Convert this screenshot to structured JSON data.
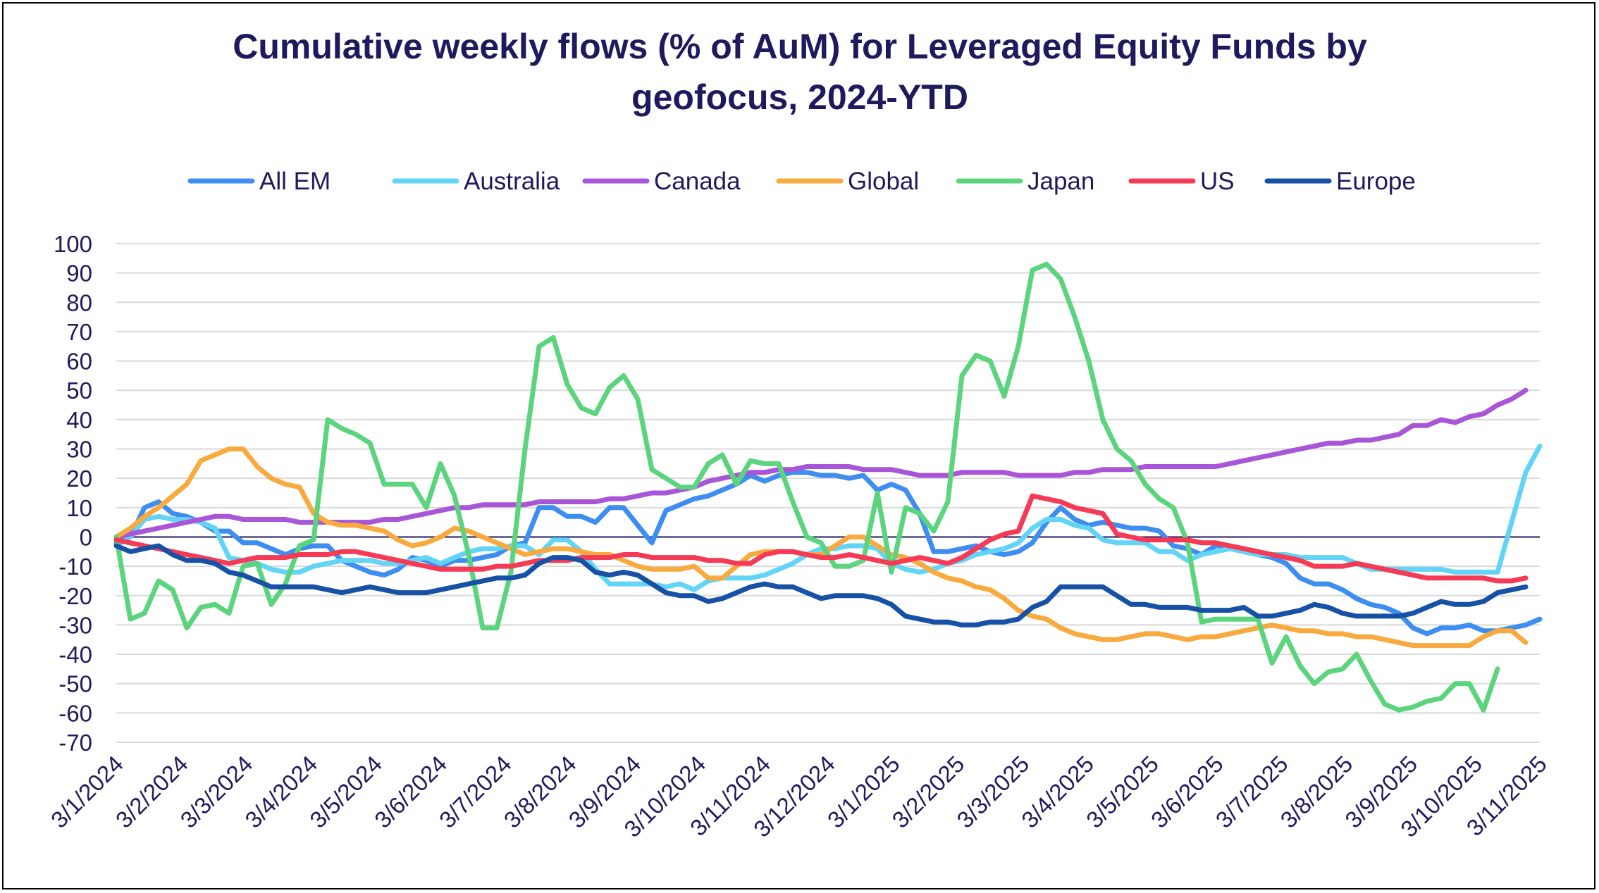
{
  "chart_data": {
    "type": "line",
    "title_lines": [
      "Cumulative weekly flows (% of AuM) for Leveraged Equity Funds by",
      "geofocus, 2024-YTD"
    ],
    "ylim": [
      -70,
      100
    ],
    "yticks": [
      "100",
      "90",
      "80",
      "70",
      "60",
      "50",
      "40",
      "30",
      "20",
      "10",
      "0",
      "-10",
      "-20",
      "-30",
      "-40",
      "-50",
      "-60",
      "-70"
    ],
    "x_tick_labels": [
      "3/1/2024",
      "3/2/2024",
      "3/3/2024",
      "3/4/2024",
      "3/5/2024",
      "3/6/2024",
      "3/7/2024",
      "3/8/2024",
      "3/9/2024",
      "3/10/2024",
      "3/11/2024",
      "3/12/2024",
      "3/1/2025",
      "3/2/2025",
      "3/3/2025",
      "3/4/2025",
      "3/5/2025",
      "3/6/2025",
      "3/7/2025",
      "3/8/2025",
      "3/9/2025",
      "3/10/2025",
      "3/11/2025"
    ],
    "legend_position": "top",
    "grid": true,
    "series": [
      {
        "name": "All EM",
        "color": "#3d8ef0",
        "values": [
          -2,
          0,
          10,
          12,
          8,
          7,
          5,
          2,
          2,
          -2,
          -2,
          -4,
          -6,
          -4,
          -3,
          -3,
          -8,
          -10,
          -12,
          -13,
          -11,
          -7,
          -8,
          -10,
          -8,
          -8,
          -7,
          -6,
          -3,
          -2,
          10,
          10,
          7,
          7,
          5,
          10,
          10,
          4,
          -2,
          9,
          11,
          13,
          14,
          16,
          18,
          21,
          19,
          21,
          22,
          22,
          21,
          21,
          20,
          21,
          16,
          18,
          16,
          8,
          -5,
          -5,
          -4,
          -3,
          -5,
          -6,
          -5,
          -2,
          5,
          10,
          6,
          4,
          5,
          4,
          3,
          3,
          2,
          -3,
          -4,
          -6,
          -3,
          -3,
          -5,
          -6,
          -7,
          -9,
          -14,
          -16,
          -16,
          -18,
          -21,
          -23,
          -24,
          -26,
          -31,
          -33,
          -31,
          -31,
          -30,
          -32,
          -32,
          -31,
          -30,
          -28
        ]
      },
      {
        "name": "Australia",
        "color": "#62d4f5",
        "values": [
          -3,
          0,
          6,
          7,
          6,
          6,
          5,
          3,
          -7,
          -8,
          -9,
          -11,
          -12,
          -12,
          -10,
          -9,
          -8,
          -8,
          -8,
          -9,
          -9,
          -8,
          -7,
          -9,
          -7,
          -5,
          -4,
          -4,
          -3,
          -3,
          -6,
          -1,
          -1,
          -5,
          -11,
          -16,
          -16,
          -16,
          -16,
          -17,
          -16,
          -18,
          -15,
          -14,
          -14,
          -14,
          -13,
          -11,
          -9,
          -6,
          -4,
          -4,
          -3,
          -3,
          -4,
          -9,
          -11,
          -12,
          -11,
          -9,
          -8,
          -6,
          -5,
          -4,
          -2,
          3,
          6,
          6,
          4,
          3,
          -1,
          -2,
          -2,
          -2,
          -5,
          -5,
          -8,
          -6,
          -5,
          -4,
          -5,
          -6,
          -6,
          -6,
          -7,
          -7,
          -7,
          -7,
          -9,
          -11,
          -11,
          -11,
          -11,
          -11,
          -11,
          -12,
          -12,
          -12,
          -12,
          5,
          22,
          31
        ]
      },
      {
        "name": "Canada",
        "color": "#a855d8",
        "values": [
          0,
          1,
          2,
          3,
          4,
          5,
          6,
          7,
          7,
          6,
          6,
          6,
          6,
          5,
          5,
          5,
          5,
          5,
          5,
          6,
          6,
          7,
          8,
          9,
          10,
          10,
          11,
          11,
          11,
          11,
          12,
          12,
          12,
          12,
          12,
          13,
          13,
          14,
          15,
          15,
          16,
          17,
          19,
          20,
          21,
          22,
          22,
          23,
          23,
          24,
          24,
          24,
          24,
          23,
          23,
          23,
          22,
          21,
          21,
          21,
          22,
          22,
          22,
          22,
          21,
          21,
          21,
          21,
          22,
          22,
          23,
          23,
          23,
          24,
          24,
          24,
          24,
          24,
          24,
          25,
          26,
          27,
          28,
          29,
          30,
          31,
          32,
          32,
          33,
          33,
          34,
          35,
          38,
          38,
          40,
          39,
          41,
          42,
          45,
          47,
          50
        ]
      },
      {
        "name": "Global",
        "color": "#f8aa3f",
        "values": [
          0,
          3,
          7,
          10,
          14,
          18,
          26,
          28,
          30,
          30,
          24,
          20,
          18,
          17,
          8,
          5,
          4,
          4,
          3,
          2,
          -1,
          -3,
          -2,
          0,
          3,
          2,
          0,
          -2,
          -4,
          -6,
          -5,
          -4,
          -4,
          -5,
          -6,
          -6,
          -8,
          -10,
          -11,
          -11,
          -11,
          -10,
          -14,
          -14,
          -10,
          -6,
          -5,
          -5,
          -5,
          -6,
          -6,
          -3,
          0,
          0,
          -3,
          -6,
          -7,
          -9,
          -12,
          -14,
          -15,
          -17,
          -18,
          -21,
          -25,
          -27,
          -28,
          -31,
          -33,
          -34,
          -35,
          -35,
          -34,
          -33,
          -33,
          -34,
          -35,
          -34,
          -34,
          -33,
          -32,
          -31,
          -30,
          -31,
          -32,
          -32,
          -33,
          -33,
          -34,
          -34,
          -35,
          -36,
          -37,
          -37,
          -37,
          -37,
          -37,
          -34,
          -32,
          -32,
          -36
        ]
      },
      {
        "name": "Japan",
        "color": "#5cd47e",
        "values": [
          0,
          -28,
          -26,
          -15,
          -18,
          -31,
          -24,
          -23,
          -26,
          -10,
          -9,
          -23,
          -16,
          -3,
          -1,
          40,
          37,
          35,
          32,
          18,
          18,
          18,
          10,
          25,
          14,
          -6,
          -31,
          -31,
          -12,
          30,
          65,
          68,
          52,
          44,
          42,
          51,
          55,
          47,
          23,
          20,
          17,
          17,
          25,
          28,
          18,
          26,
          25,
          25,
          12,
          0,
          -2,
          -10,
          -10,
          -8,
          15,
          -12,
          10,
          8,
          2,
          12,
          55,
          62,
          60,
          48,
          65,
          91,
          93,
          88,
          75,
          60,
          40,
          30,
          26,
          18,
          13,
          10,
          -2,
          -29,
          -28,
          -28,
          -28,
          -28,
          -43,
          -34,
          -44,
          -50,
          -46,
          -45,
          -40,
          -49,
          -57,
          -59,
          -58,
          -56,
          -55,
          -50,
          -50,
          -59,
          -45
        ]
      },
      {
        "name": "US",
        "color": "#f63a56",
        "values": [
          -1,
          -2,
          -3,
          -4,
          -5,
          -6,
          -7,
          -8,
          -9,
          -8,
          -7,
          -7,
          -7,
          -6,
          -6,
          -6,
          -5,
          -5,
          -6,
          -7,
          -8,
          -9,
          -10,
          -11,
          -11,
          -11,
          -11,
          -10,
          -10,
          -9,
          -8,
          -8,
          -8,
          -7,
          -7,
          -7,
          -6,
          -6,
          -7,
          -7,
          -7,
          -7,
          -8,
          -8,
          -9,
          -9,
          -6,
          -5,
          -5,
          -6,
          -7,
          -7,
          -6,
          -7,
          -8,
          -9,
          -8,
          -7,
          -8,
          -9,
          -7,
          -4,
          -1,
          1,
          2,
          14,
          13,
          12,
          10,
          9,
          8,
          1,
          0,
          -1,
          -1,
          -1,
          -1,
          -2,
          -2,
          -3,
          -4,
          -5,
          -6,
          -7,
          -8,
          -10,
          -10,
          -10,
          -9,
          -10,
          -11,
          -12,
          -13,
          -14,
          -14,
          -14,
          -14,
          -14,
          -15,
          -15,
          -14
        ]
      },
      {
        "name": "Europe",
        "color": "#1751a5",
        "values": [
          -3,
          -5,
          -4,
          -3,
          -6,
          -8,
          -8,
          -9,
          -12,
          -13,
          -15,
          -17,
          -17,
          -17,
          -17,
          -18,
          -19,
          -18,
          -17,
          -18,
          -19,
          -19,
          -19,
          -18,
          -17,
          -16,
          -15,
          -14,
          -14,
          -13,
          -9,
          -7,
          -7,
          -8,
          -12,
          -13,
          -12,
          -13,
          -16,
          -19,
          -20,
          -20,
          -22,
          -21,
          -19,
          -17,
          -16,
          -17,
          -17,
          -19,
          -21,
          -20,
          -20,
          -20,
          -21,
          -23,
          -27,
          -28,
          -29,
          -29,
          -30,
          -30,
          -29,
          -29,
          -28,
          -24,
          -22,
          -17,
          -17,
          -17,
          -17,
          -20,
          -23,
          -23,
          -24,
          -24,
          -24,
          -25,
          -25,
          -25,
          -24,
          -27,
          -27,
          -26,
          -25,
          -23,
          -24,
          -26,
          -27,
          -27,
          -27,
          -27,
          -26,
          -24,
          -22,
          -23,
          -23,
          -22,
          -19,
          -18,
          -17
        ]
      }
    ]
  }
}
